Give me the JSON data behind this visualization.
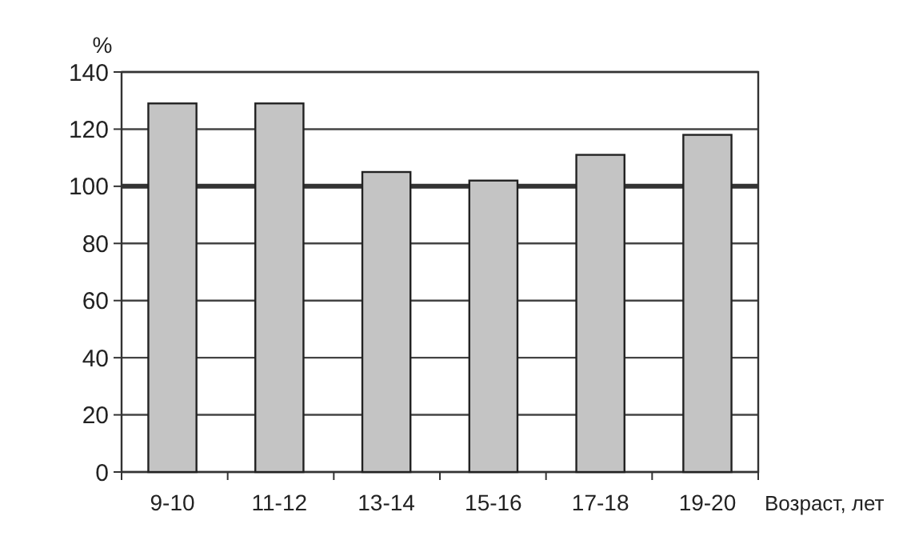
{
  "chart_data": {
    "type": "bar",
    "ylabel": "%",
    "xlabel": "Возраст, лет",
    "categories": [
      "9-10",
      "11-12",
      "13-14",
      "15-16",
      "17-18",
      "19-20"
    ],
    "values": [
      129,
      129,
      105,
      102,
      111,
      118
    ],
    "color": "#c4c4c4",
    "ylim": [
      0,
      140
    ],
    "yticks": [
      0,
      20,
      40,
      60,
      80,
      100,
      120,
      140
    ],
    "grid": "y",
    "ref_lines": [
      {
        "axis": "y",
        "value": 100,
        "color": "#333333"
      }
    ]
  }
}
